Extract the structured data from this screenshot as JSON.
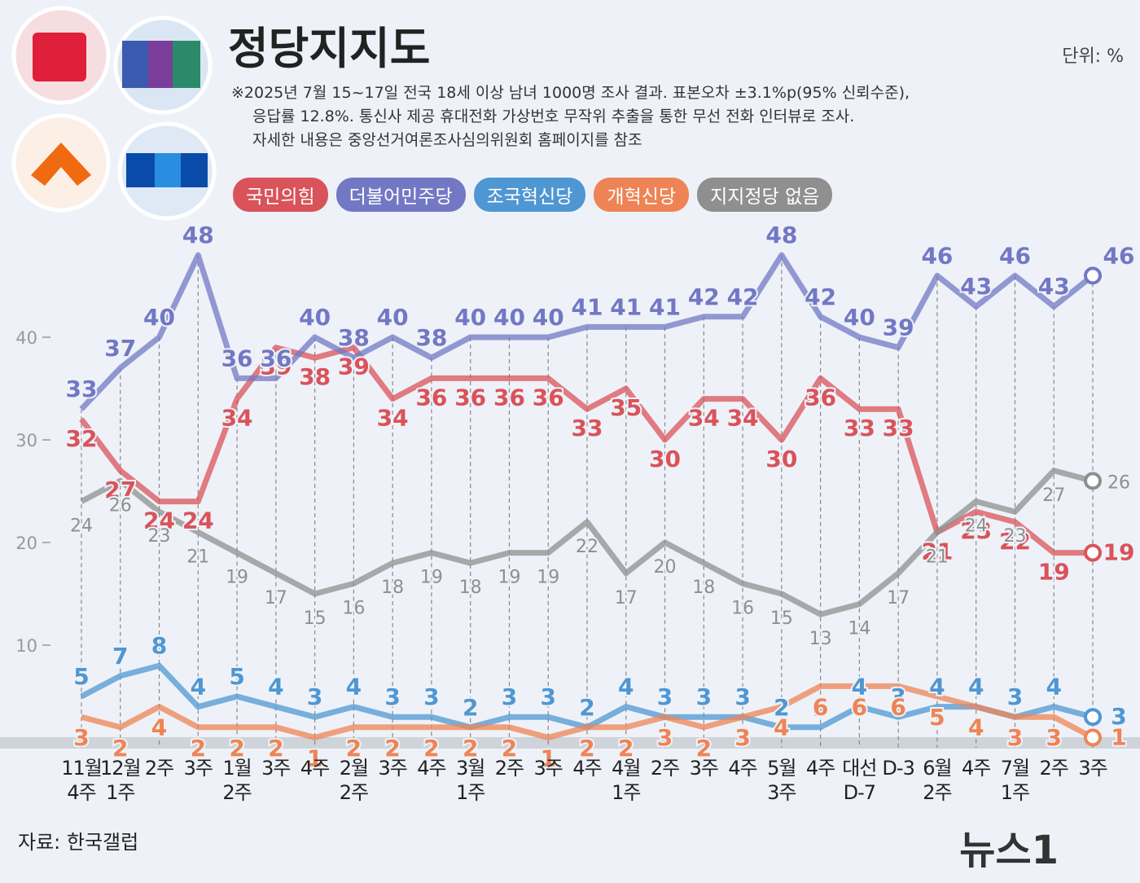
{
  "chart_data": {
    "type": "line",
    "title": "정당지지도",
    "unit": "단위: %",
    "notes": [
      "※2025년 7월 15~17일 전국 18세 이상 남녀 1000명 조사 결과. 표본오차 ±3.1%p(95% 신뢰수준),",
      "응답률 12.8%. 통신사 제공 휴대전화 가상번호 무작위 추출을 통한 무선 전화 인터뷰로 조사.",
      "자세한 내용은 중앙선거여론조사심의위원회 홈페이지를 참조"
    ],
    "source": "자료: 한국갤럽",
    "brand": "뉴스1",
    "categories": [
      "11월\n4주",
      "12월\n1주",
      "2주",
      "3주",
      "1월\n2주",
      "3주",
      "4주",
      "2월\n2주",
      "3주",
      "4주",
      "3월\n1주",
      "2주",
      "3주",
      "4주",
      "4월\n1주",
      "2주",
      "3주",
      "4주",
      "5월\n3주",
      "4주",
      "대선\nD-7",
      "D-3",
      "6월\n2주",
      "4주",
      "7월\n1주",
      "2주",
      "3주"
    ],
    "series": [
      {
        "name": "국민의힘",
        "color": "#d9535a",
        "values": [
          32,
          27,
          24,
          24,
          34,
          39,
          38,
          39,
          34,
          36,
          36,
          36,
          36,
          33,
          35,
          30,
          34,
          34,
          30,
          36,
          33,
          33,
          21,
          23,
          22,
          19,
          19
        ]
      },
      {
        "name": "더불어민주당",
        "color": "#7278c4",
        "values": [
          33,
          37,
          40,
          48,
          36,
          36,
          40,
          38,
          40,
          38,
          40,
          40,
          40,
          41,
          41,
          41,
          42,
          42,
          48,
          42,
          40,
          39,
          46,
          43,
          46,
          43,
          46
        ]
      },
      {
        "name": "조국혁신당",
        "color": "#4f97d2",
        "values": [
          5,
          7,
          8,
          4,
          5,
          4,
          3,
          4,
          3,
          3,
          2,
          3,
          3,
          2,
          4,
          3,
          3,
          3,
          2,
          2,
          4,
          3,
          4,
          4,
          3,
          4,
          3
        ]
      },
      {
        "name": "개혁신당",
        "color": "#ee8455",
        "values": [
          3,
          2,
          4,
          2,
          2,
          2,
          1,
          2,
          2,
          2,
          2,
          2,
          1,
          2,
          2,
          3,
          2,
          3,
          4,
          6,
          6,
          6,
          5,
          4,
          3,
          3,
          1
        ]
      },
      {
        "name": "지지정당 없음",
        "color": "#8f8f8f",
        "values": [
          24,
          26,
          23,
          21,
          19,
          17,
          15,
          16,
          18,
          19,
          18,
          19,
          19,
          22,
          17,
          20,
          18,
          16,
          15,
          13,
          14,
          17,
          21,
          24,
          23,
          27,
          26
        ]
      }
    ],
    "ylim": [
      0,
      50
    ],
    "yticks": [
      10,
      20,
      30,
      40
    ]
  }
}
